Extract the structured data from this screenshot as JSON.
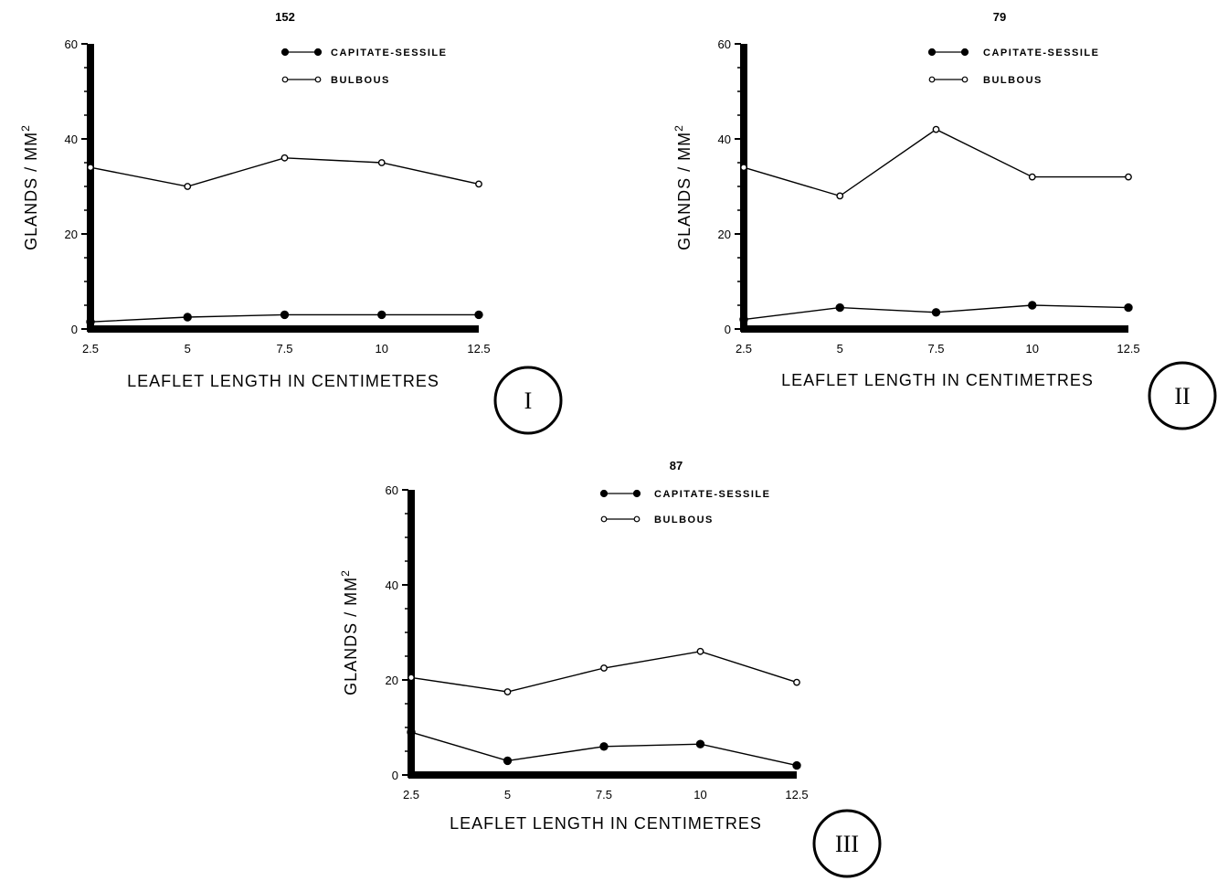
{
  "chart_data": [
    {
      "type": "line",
      "title": "152",
      "panel_label": "I",
      "xlabel": "LEAFLET LENGTH IN CENTIMETRES",
      "ylabel": "GLANDS / MM",
      "ylabel_sup": "2",
      "x": [
        2.5,
        5,
        7.5,
        10,
        12.5
      ],
      "x_ticks": [
        "2.5",
        "5",
        "7.5",
        "10",
        "12.5"
      ],
      "y_ticks": [
        "0",
        "20",
        "40",
        "60"
      ],
      "xlim": [
        2.5,
        12.5
      ],
      "ylim": [
        0,
        60
      ],
      "legend_position": "top-right",
      "series": [
        {
          "name": "CAPITATE-SESSILE",
          "marker": "filled",
          "values": [
            1.5,
            2.5,
            3,
            3,
            3
          ]
        },
        {
          "name": "BULBOUS",
          "marker": "open",
          "values": [
            34,
            30,
            36,
            35,
            30.5
          ]
        }
      ]
    },
    {
      "type": "line",
      "title": "79",
      "panel_label": "II",
      "xlabel": "LEAFLET LENGTH IN CENTIMETRES",
      "ylabel": "GLANDS / MM",
      "ylabel_sup": "2",
      "x": [
        2.5,
        5,
        7.5,
        10,
        12.5
      ],
      "x_ticks": [
        "2.5",
        "5",
        "7.5",
        "10",
        "12.5"
      ],
      "y_ticks": [
        "0",
        "20",
        "40",
        "60"
      ],
      "xlim": [
        2.5,
        12.5
      ],
      "ylim": [
        0,
        60
      ],
      "legend_position": "top-right",
      "series": [
        {
          "name": "CAPITATE-SESSILE",
          "marker": "filled",
          "values": [
            2,
            4.5,
            3.5,
            5,
            4.5
          ]
        },
        {
          "name": "BULBOUS",
          "marker": "open",
          "values": [
            34,
            28,
            42,
            32,
            32
          ]
        }
      ]
    },
    {
      "type": "line",
      "title": "87",
      "panel_label": "III",
      "xlabel": "LEAFLET LENGTH IN CENTIMETRES",
      "ylabel": "GLANDS / MM",
      "ylabel_sup": "2",
      "x": [
        2.5,
        5,
        7.5,
        10,
        12.5
      ],
      "x_ticks": [
        "2.5",
        "5",
        "7.5",
        "10",
        "12.5"
      ],
      "y_ticks": [
        "0",
        "20",
        "40",
        "60"
      ],
      "xlim": [
        2.5,
        12.5
      ],
      "ylim": [
        0,
        60
      ],
      "legend_position": "top-right",
      "series": [
        {
          "name": "CAPITATE-SESSILE",
          "marker": "filled",
          "values": [
            9,
            3,
            6,
            6.5,
            2
          ]
        },
        {
          "name": "BULBOUS",
          "marker": "open",
          "values": [
            20.5,
            17.5,
            22.5,
            26,
            19.5
          ]
        }
      ]
    }
  ]
}
